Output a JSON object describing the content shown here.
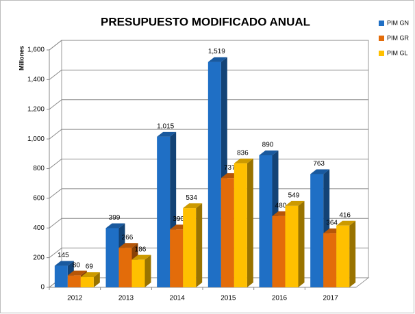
{
  "chart_data": {
    "type": "bar3d",
    "title": "PRESUPUESTO MODIFICADO ANUAL",
    "y_label": "Millones",
    "categories": [
      "2012",
      "2013",
      "2014",
      "2015",
      "2016",
      "2017"
    ],
    "series": [
      {
        "name": "PIM GN",
        "color": "#1f6fc5",
        "values": [
          145,
          399,
          1015,
          1519,
          890,
          763
        ],
        "value_labels": [
          "145",
          "399",
          "1,015",
          "1,519",
          "890",
          "763"
        ]
      },
      {
        "name": "PIM GR",
        "color": "#e36c0a",
        "values": [
          80,
          266,
          390,
          737,
          480,
          364
        ],
        "value_labels": [
          "80",
          "266",
          "390",
          "737",
          "480",
          "364"
        ]
      },
      {
        "name": "PIM GL",
        "color": "#ffc000",
        "values": [
          69,
          186,
          534,
          836,
          549,
          416
        ],
        "value_labels": [
          "69",
          "186",
          "534",
          "836",
          "549",
          "416"
        ]
      }
    ],
    "ylim": [
      0,
      1600
    ],
    "yticks": [
      0,
      200,
      400,
      600,
      800,
      {
        "value": 1000,
        "label": "1,000"
      },
      {
        "value": 1200,
        "label": "1,200"
      },
      {
        "value": 1400,
        "label": "1,400"
      },
      {
        "value": 1600,
        "label": "1,600"
      }
    ],
    "grid": true,
    "legend": "top-right"
  }
}
